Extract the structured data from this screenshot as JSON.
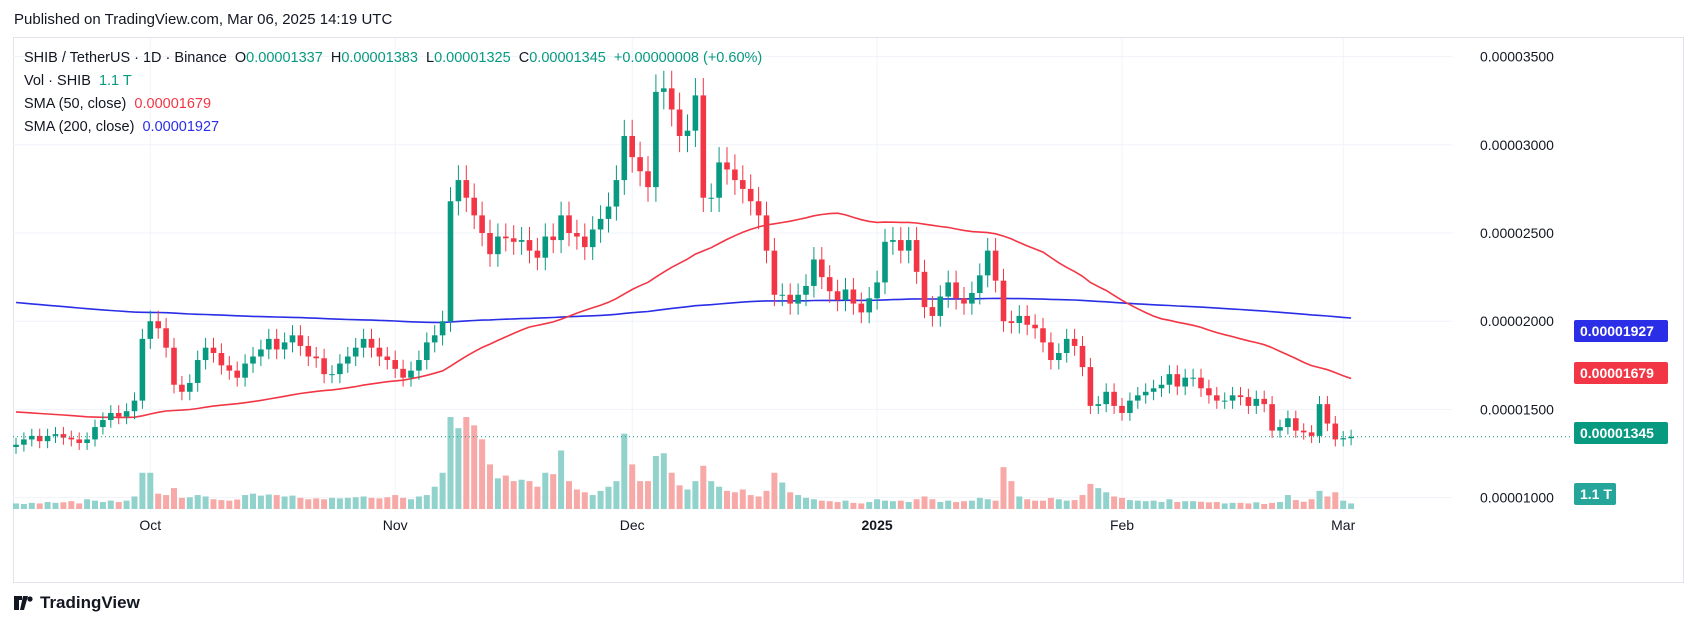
{
  "published": "Published on TradingView.com, Mar 06, 2025 14:19 UTC",
  "brand": "TradingView",
  "legend": {
    "symbol": "SHIB / TetherUS · 1D · Binance",
    "o_label": "O",
    "o": "0.00001337",
    "h_label": "H",
    "h": "0.00001383",
    "l_label": "L",
    "l": "0.00001325",
    "c_label": "C",
    "c": "0.00001345",
    "change": "+0.00000008 (+0.60%)",
    "vol_label": "Vol · SHIB",
    "vol": "1.1 T",
    "sma50_label": "SMA (50, close)",
    "sma50": "0.00001679",
    "sma200_label": "SMA (200, close)",
    "sma200": "0.00001927"
  },
  "tags": {
    "sma200": "0.00001927",
    "sma50": "0.00001679",
    "last": "0.00001345",
    "vol": "1.1 T"
  },
  "colors": {
    "up": "#089981",
    "down": "#f23645",
    "sma50": "#f23645",
    "sma200": "#2a2ee6",
    "vol_up": "#92d2cc",
    "vol_down": "#f7a9a7"
  },
  "chart_data": {
    "type": "candlestick",
    "y_ticks": [
      "0.00003500",
      "0.00003000",
      "0.00002500",
      "0.00002000",
      "0.00001500",
      "0.00001000"
    ],
    "ylim": [
      9.3e-06,
      3.56e-05
    ],
    "x_ticks": [
      {
        "label": "Oct",
        "index": 17,
        "bold": false
      },
      {
        "label": "Nov",
        "index": 48,
        "bold": false
      },
      {
        "label": "Dec",
        "index": 78,
        "bold": false
      },
      {
        "label": "2025",
        "index": 109,
        "bold": true
      },
      {
        "label": "Feb",
        "index": 140,
        "bold": false
      },
      {
        "label": "Mar",
        "index": 168,
        "bold": false
      }
    ],
    "closes": [
      1.3e-05,
      1.33e-05,
      1.35e-05,
      1.32e-05,
      1.35e-05,
      1.36e-05,
      1.34e-05,
      1.33e-05,
      1.31e-05,
      1.33e-05,
      1.4e-05,
      1.44e-05,
      1.48e-05,
      1.46e-05,
      1.49e-05,
      1.55e-05,
      1.9e-05,
      2e-05,
      1.96e-05,
      1.85e-05,
      1.64e-05,
      1.6e-05,
      1.65e-05,
      1.78e-05,
      1.85e-05,
      1.82e-05,
      1.75e-05,
      1.72e-05,
      1.68e-05,
      1.76e-05,
      1.8e-05,
      1.84e-05,
      1.9e-05,
      1.84e-05,
      1.88e-05,
      1.92e-05,
      1.86e-05,
      1.8e-05,
      1.79e-05,
      1.7e-05,
      1.7e-05,
      1.76e-05,
      1.8e-05,
      1.85e-05,
      1.9e-05,
      1.85e-05,
      1.8e-05,
      1.78e-05,
      1.73e-05,
      1.68e-05,
      1.72e-05,
      1.78e-05,
      1.88e-05,
      1.92e-05,
      2e-05,
      2.68e-05,
      2.8e-05,
      2.7e-05,
      2.6e-05,
      2.5e-05,
      2.38e-05,
      2.48e-05,
      2.47e-05,
      2.45e-05,
      2.46e-05,
      2.4e-05,
      2.36e-05,
      2.48e-05,
      2.46e-05,
      2.6e-05,
      2.5e-05,
      2.48e-05,
      2.42e-05,
      2.52e-05,
      2.58e-05,
      2.65e-05,
      2.8e-05,
      3.05e-05,
      2.93e-05,
      2.85e-05,
      2.76e-05,
      3.3e-05,
      3.32e-05,
      3.2e-05,
      3.05e-05,
      3.08e-05,
      3.28e-05,
      2.7e-05,
      2.7e-05,
      2.9e-05,
      2.86e-05,
      2.8e-05,
      2.75e-05,
      2.68e-05,
      2.6e-05,
      2.4e-05,
      2.15e-05,
      2.15e-05,
      2.1e-05,
      2.15e-05,
      2.2e-05,
      2.35e-05,
      2.25e-05,
      2.17e-05,
      2.12e-05,
      2.18e-05,
      2.1e-05,
      2.05e-05,
      2.13e-05,
      2.22e-05,
      2.45e-05,
      2.46e-05,
      2.4e-05,
      2.46e-05,
      2.28e-05,
      2.08e-05,
      2.03e-05,
      2.14e-05,
      2.22e-05,
      2.13e-05,
      2.1e-05,
      2.16e-05,
      2.26e-05,
      2.4e-05,
      2.23e-05,
      2e-05,
      1.99e-05,
      2.03e-05,
      1.98e-05,
      1.96e-05,
      1.88e-05,
      1.78e-05,
      1.82e-05,
      1.9e-05,
      1.86e-05,
      1.74e-05,
      1.52e-05,
      1.53e-05,
      1.6e-05,
      1.52e-05,
      1.48e-05,
      1.55e-05,
      1.58e-05,
      1.6e-05,
      1.62e-05,
      1.64e-05,
      1.7e-05,
      1.63e-05,
      1.68e-05,
      1.68e-05,
      1.62e-05,
      1.58e-05,
      1.55e-05,
      1.55e-05,
      1.58e-05,
      1.57e-05,
      1.52e-05,
      1.56e-05,
      1.53e-05,
      1.38e-05,
      1.4e-05,
      1.45e-05,
      1.38e-05,
      1.37e-05,
      1.35e-05,
      1.53e-05,
      1.42e-05,
      1.33e-05,
      1.337e-05,
      1.345e-05
    ],
    "volumes": [
      0.2,
      0.18,
      0.22,
      0.2,
      0.25,
      0.22,
      0.24,
      0.28,
      0.2,
      0.35,
      0.3,
      0.25,
      0.3,
      0.25,
      0.3,
      0.45,
      1.3,
      1.3,
      0.55,
      0.5,
      0.75,
      0.4,
      0.42,
      0.5,
      0.45,
      0.35,
      0.32,
      0.3,
      0.34,
      0.5,
      0.55,
      0.48,
      0.52,
      0.5,
      0.45,
      0.48,
      0.4,
      0.35,
      0.38,
      0.35,
      0.4,
      0.38,
      0.4,
      0.42,
      0.45,
      0.4,
      0.38,
      0.42,
      0.5,
      0.4,
      0.35,
      0.45,
      0.5,
      0.8,
      1.3,
      3.3,
      2.9,
      3.3,
      3.0,
      2.5,
      1.6,
      1.1,
      1.2,
      1.0,
      1.05,
      1.0,
      0.8,
      1.3,
      1.25,
      2.1,
      1.0,
      0.7,
      0.6,
      0.5,
      0.65,
      0.8,
      1.0,
      2.7,
      1.6,
      1.0,
      1.0,
      1.9,
      2.0,
      1.3,
      0.85,
      0.7,
      1.0,
      1.55,
      1.0,
      0.8,
      0.65,
      0.6,
      0.7,
      0.5,
      0.45,
      0.65,
      1.3,
      0.95,
      0.6,
      0.5,
      0.4,
      0.35,
      0.3,
      0.28,
      0.25,
      0.3,
      0.22,
      0.2,
      0.25,
      0.35,
      0.3,
      0.28,
      0.3,
      0.25,
      0.35,
      0.45,
      0.35,
      0.25,
      0.3,
      0.25,
      0.28,
      0.3,
      0.4,
      0.35,
      0.3,
      1.5,
      1.0,
      0.45,
      0.35,
      0.3,
      0.3,
      0.4,
      0.35,
      0.3,
      0.32,
      0.5,
      0.9,
      0.75,
      0.6,
      0.45,
      0.4,
      0.32,
      0.3,
      0.28,
      0.3,
      0.25,
      0.35,
      0.25,
      0.28,
      0.28,
      0.26,
      0.24,
      0.25,
      0.2,
      0.22,
      0.22,
      0.2,
      0.24,
      0.18,
      0.22,
      0.25,
      0.5,
      0.32,
      0.26,
      0.35,
      0.65,
      0.45,
      0.6,
      0.3,
      0.2
    ],
    "vol_scale_ref": 3.3,
    "sma50_start": 1.49e-05,
    "sma200_start": 2.11e-05
  }
}
